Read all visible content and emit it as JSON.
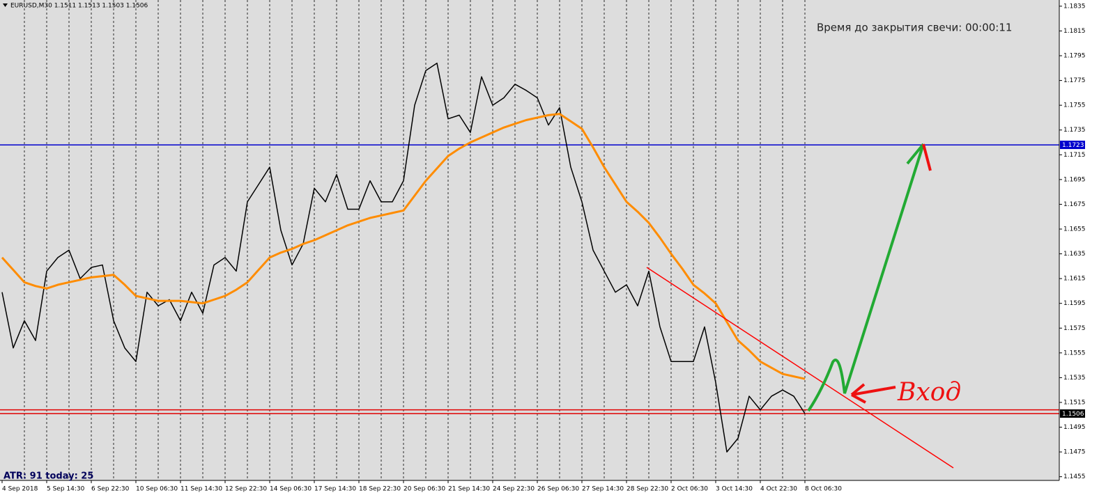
{
  "chart_data": {
    "type": "line",
    "title": "EURUSD,M30  1.1511 1.1513 1.1503 1.1506",
    "timer": "Время до закрытия свечи: 00:00:11",
    "indicator": "ATR: 91  today: 25",
    "annotation": "Вход",
    "categories": [
      "4 Sep 2018",
      null,
      null,
      null,
      "5 Sep 14:30",
      null,
      null,
      null,
      "6 Sep 22:30",
      null,
      null,
      null,
      "10 Sep 06:30",
      null,
      null,
      null,
      "11 Sep 14:30",
      null,
      null,
      null,
      "12 Sep 22:30",
      null,
      null,
      null,
      "14 Sep 06:30",
      null,
      null,
      null,
      "17 Sep 14:30",
      null,
      null,
      null,
      "18 Sep 22:30",
      null,
      null,
      null,
      "20 Sep 06:30",
      null,
      null,
      null,
      "21 Sep 14:30",
      null,
      null,
      null,
      "24 Sep 22:30",
      null,
      null,
      null,
      "26 Sep 06:30",
      null,
      null,
      null,
      "27 Sep 14:30",
      null,
      null,
      null,
      "28 Sep 22:30",
      null,
      null,
      null,
      "2 Oct 06:30",
      null,
      null,
      null,
      "3 Oct 14:30",
      null,
      null,
      null,
      "4 Oct 22:30",
      null,
      null,
      null,
      "8 Oct 06:30"
    ],
    "series": [
      {
        "color": "#000000",
        "width": 1.5,
        "values": [
          1.1604,
          1.1559,
          1.1581,
          1.1565,
          1.1621,
          1.1632,
          1.1638,
          1.1615,
          1.1624,
          1.1626,
          1.1581,
          1.1559,
          1.1548,
          1.1604,
          1.1593,
          1.1598,
          1.1581,
          1.1604,
          1.1587,
          1.1626,
          1.1632,
          1.1621,
          1.1677,
          1.1691,
          1.1705,
          1.1654,
          1.1626,
          1.1643,
          1.1688,
          1.1677,
          1.1699,
          1.1671,
          1.1671,
          1.1694,
          1.1677,
          1.1677,
          1.1694,
          1.1755,
          1.1783,
          1.1789,
          1.1744,
          1.1747,
          1.1733,
          1.1778,
          1.1755,
          1.1761,
          1.1772,
          1.1767,
          1.1761,
          1.1739,
          1.1753,
          1.1705,
          1.1677,
          1.1638,
          1.1621,
          1.1604,
          1.161,
          1.1593,
          1.1621,
          1.1576,
          1.1548,
          1.1548,
          1.1548,
          1.1576,
          1.1531,
          1.1475,
          1.1486,
          1.152,
          1.1509,
          1.152,
          1.1525,
          1.152,
          1.1506
        ]
      },
      {
        "color": "#ff8c00",
        "width": 3,
        "values": [
          1.1632,
          1.1622,
          1.1612,
          1.1609,
          1.1607,
          1.161,
          1.1612,
          1.1614,
          1.1616,
          1.1617,
          1.1618,
          1.161,
          1.1601,
          1.1599,
          1.1597,
          1.1597,
          1.1597,
          1.1596,
          1.1595,
          1.1598,
          1.1601,
          1.1606,
          1.1612,
          1.1622,
          1.1632,
          1.1636,
          1.1639,
          1.1643,
          1.1646,
          1.165,
          1.1654,
          1.1658,
          1.1661,
          1.1664,
          1.1666,
          1.1668,
          1.167,
          1.1682,
          1.1694,
          1.1704,
          1.1714,
          1.172,
          1.1725,
          1.1729,
          1.1733,
          1.1737,
          1.174,
          1.1743,
          1.1745,
          1.1747,
          1.1748,
          1.1742,
          1.1736,
          1.1721,
          1.1705,
          1.1691,
          1.1677,
          1.1669,
          1.166,
          1.1648,
          1.1635,
          1.1623,
          1.161,
          1.1603,
          1.1595,
          1.158,
          1.1565,
          1.1557,
          1.1548,
          1.1543,
          1.1538,
          1.1536,
          1.1534
        ]
      }
    ],
    "hlines": [
      {
        "value": 1.1723,
        "color": "#0000cd",
        "labeled": true
      },
      {
        "value": 1.1509,
        "color": "#e00000",
        "labeled": false
      },
      {
        "value": 1.1506,
        "color": "#e00000",
        "labeled": true
      }
    ],
    "ylim": [
      1.1452,
      1.184
    ],
    "yticks": [
      1.1835,
      1.1815,
      1.1795,
      1.1775,
      1.1755,
      1.1735,
      1.1715,
      1.1695,
      1.1675,
      1.1655,
      1.1635,
      1.1615,
      1.1595,
      1.1575,
      1.1555,
      1.1535,
      1.1515,
      1.1495,
      1.1475,
      1.1455
    ],
    "grid": true
  }
}
